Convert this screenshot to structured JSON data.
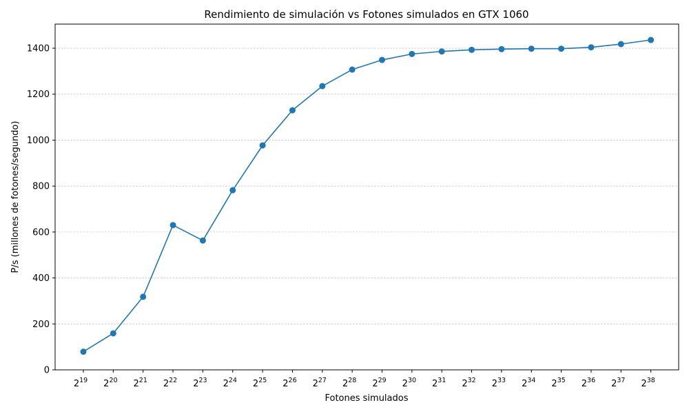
{
  "chart_data": {
    "type": "line",
    "title": "Rendimiento de simulación vs Fotones simulados en GTX 1060",
    "xlabel": "Fotones simulados",
    "ylabel": "P/s (millones de fotones/segundo)",
    "x_tick_base": "2",
    "x_exponents": [
      "19",
      "20",
      "21",
      "22",
      "23",
      "24",
      "25",
      "26",
      "27",
      "28",
      "29",
      "30",
      "31",
      "32",
      "33",
      "34",
      "35",
      "36",
      "37",
      "38"
    ],
    "y_ticks": [
      "0",
      "200",
      "400",
      "600",
      "800",
      "1000",
      "1200",
      "1400"
    ],
    "ylim": [
      0,
      1505
    ],
    "grid": "horizontal dashed",
    "series": [
      {
        "color": "#1f77b4",
        "marker": "circle",
        "values": [
          79,
          159,
          318,
          630,
          563,
          782,
          977,
          1130,
          1235,
          1307,
          1349,
          1375,
          1386,
          1393,
          1396,
          1398,
          1398,
          1404,
          1418,
          1436
        ]
      }
    ]
  }
}
